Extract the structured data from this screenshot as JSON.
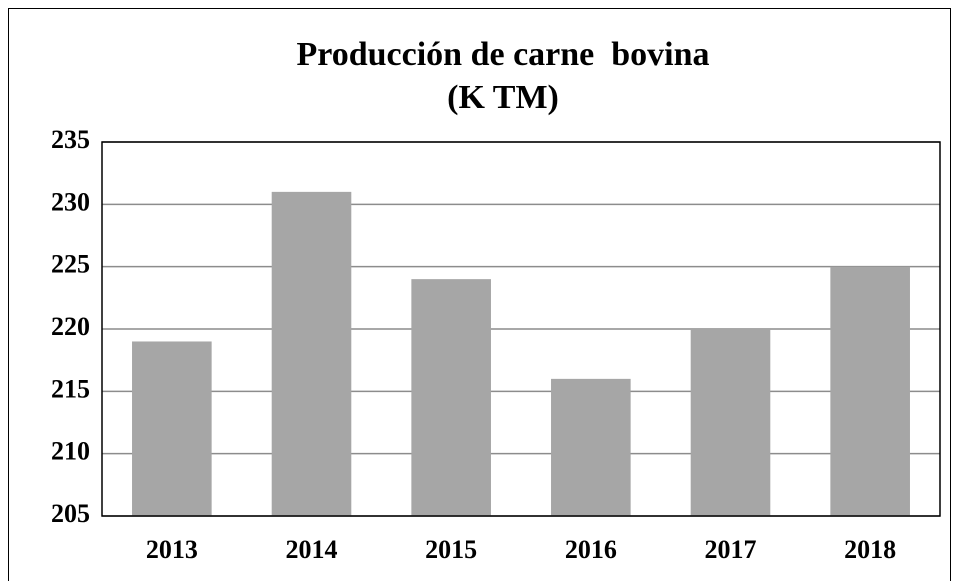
{
  "chart_data": {
    "type": "bar",
    "title": [
      "Producción de carne  bovina",
      "(K TM)"
    ],
    "categories": [
      "2013",
      "2014",
      "2015",
      "2016",
      "2017",
      "2018"
    ],
    "values": [
      219,
      231,
      224,
      216,
      220,
      225
    ],
    "color": "#a6a6a6",
    "ylim": [
      205,
      235
    ],
    "yticks": [
      205,
      210,
      215,
      220,
      225,
      230,
      235
    ],
    "grid": true
  }
}
